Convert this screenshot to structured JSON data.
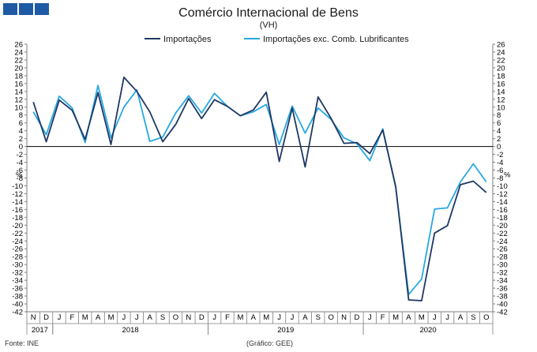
{
  "header": {
    "title": "Comércio Internacional de Bens",
    "subtitle": "(VH)",
    "logo_color": "#1f5aa5"
  },
  "footer": {
    "source": "Fonte: INE",
    "credit": "(Gráfico: GEE)"
  },
  "chart_data": {
    "type": "line",
    "ylim": [
      -42,
      26
    ],
    "ytick_step": 2,
    "ylabel_left": "%",
    "ylabel_right": "%",
    "grid": false,
    "legend_position": "top",
    "x": [
      "N",
      "D",
      "J",
      "F",
      "M",
      "A",
      "M",
      "J",
      "J",
      "A",
      "S",
      "O",
      "N",
      "D",
      "J",
      "F",
      "M",
      "A",
      "M",
      "J",
      "J",
      "A",
      "S",
      "O",
      "N",
      "D",
      "J",
      "F",
      "M",
      "A",
      "M",
      "J",
      "J",
      "A",
      "S",
      "O"
    ],
    "year_labels": [
      {
        "label": "2017",
        "start": 0,
        "end": 1
      },
      {
        "label": "2018",
        "start": 2,
        "end": 13
      },
      {
        "label": "2019",
        "start": 14,
        "end": 25
      },
      {
        "label": "2020",
        "start": 26,
        "end": 35
      }
    ],
    "series": [
      {
        "name": "Importações",
        "color": "#1f3864",
        "values": [
          11.3,
          1.2,
          11.8,
          9.2,
          1.8,
          13.7,
          0.5,
          17.6,
          14.0,
          8.8,
          1.2,
          5.6,
          12.2,
          7.1,
          11.9,
          10.2,
          7.8,
          9.3,
          13.8,
          -3.8,
          9.8,
          -5.2,
          12.6,
          7.2,
          0.8,
          1.0,
          -1.8,
          4.2,
          -10.2,
          -39.0,
          -39.2,
          -22.0,
          -20.1,
          -9.7,
          -8.8,
          -11.7
        ]
      },
      {
        "name": "Importações exc. Comb. Lubrificantes",
        "color": "#27a9e1",
        "values": [
          8.8,
          3.0,
          12.8,
          9.8,
          1.0,
          15.5,
          2.2,
          10.0,
          14.4,
          1.3,
          2.4,
          8.5,
          12.9,
          8.5,
          13.5,
          10.2,
          7.8,
          8.8,
          10.7,
          0.5,
          10.3,
          3.4,
          9.8,
          6.9,
          2.2,
          0.7,
          -3.6,
          4.5,
          -10.4,
          -37.6,
          -33.7,
          -15.9,
          -15.6,
          -9.0,
          -4.4,
          -9.0
        ]
      }
    ]
  }
}
